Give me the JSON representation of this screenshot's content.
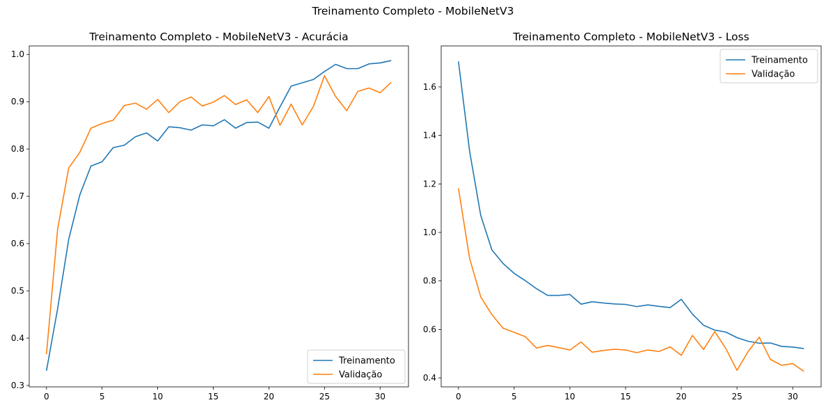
{
  "suptitle": "Treinamento Completo - MobileNetV3",
  "colors": {
    "train": "#1f77b4",
    "val": "#ff7f0e"
  },
  "chart_data": [
    {
      "type": "line",
      "title": "Treinamento Completo - MobileNetV3 - Acurácia",
      "xlabel": "",
      "ylabel": "",
      "xlim": [
        -1.55,
        32.55
      ],
      "ylim": [
        0.297,
        1.018
      ],
      "xticks": [
        0,
        5,
        10,
        15,
        20,
        25,
        30
      ],
      "yticks": [
        0.3,
        0.4,
        0.5,
        0.6,
        0.7,
        0.8,
        0.9,
        1.0
      ],
      "ytick_labels": [
        "0.3",
        "0.4",
        "0.5",
        "0.6",
        "0.7",
        "0.8",
        "0.9",
        "1.0"
      ],
      "legend_position": "lower right",
      "x": [
        0,
        1,
        2,
        3,
        4,
        5,
        6,
        7,
        8,
        9,
        10,
        11,
        12,
        13,
        14,
        15,
        16,
        17,
        18,
        19,
        20,
        21,
        22,
        23,
        24,
        25,
        26,
        27,
        28,
        29,
        30,
        31
      ],
      "series": [
        {
          "name": "Treinamento",
          "color_key": "train",
          "values": [
            0.331,
            0.462,
            0.609,
            0.703,
            0.764,
            0.773,
            0.803,
            0.808,
            0.826,
            0.834,
            0.817,
            0.847,
            0.845,
            0.84,
            0.851,
            0.849,
            0.862,
            0.844,
            0.856,
            0.857,
            0.844,
            0.889,
            0.933,
            0.94,
            0.947,
            0.964,
            0.979,
            0.97,
            0.97,
            0.98,
            0.982,
            0.987
          ]
        },
        {
          "name": "Validação",
          "color_key": "val",
          "values": [
            0.366,
            0.63,
            0.76,
            0.793,
            0.844,
            0.854,
            0.861,
            0.892,
            0.897,
            0.884,
            0.905,
            0.877,
            0.9,
            0.91,
            0.891,
            0.899,
            0.913,
            0.894,
            0.904,
            0.877,
            0.911,
            0.85,
            0.895,
            0.851,
            0.89,
            0.955,
            0.911,
            0.881,
            0.922,
            0.929,
            0.919,
            0.941
          ]
        }
      ]
    },
    {
      "type": "line",
      "title": "Treinamento Completo - MobileNetV3 - Loss",
      "xlabel": "",
      "ylabel": "",
      "xlim": [
        -1.55,
        32.55
      ],
      "ylim": [
        0.363,
        1.769
      ],
      "xticks": [
        0,
        5,
        10,
        15,
        20,
        25,
        30
      ],
      "yticks": [
        0.4,
        0.6,
        0.8,
        1.0,
        1.2,
        1.4,
        1.6
      ],
      "ytick_labels": [
        "0.4",
        "0.6",
        "0.8",
        "1.0",
        "1.2",
        "1.4",
        "1.6"
      ],
      "legend_position": "upper right",
      "x": [
        0,
        1,
        2,
        3,
        4,
        5,
        6,
        7,
        8,
        9,
        10,
        11,
        12,
        13,
        14,
        15,
        16,
        17,
        18,
        19,
        20,
        21,
        22,
        23,
        24,
        25,
        26,
        27,
        28,
        29,
        30,
        31
      ],
      "series": [
        {
          "name": "Treinamento",
          "color_key": "train",
          "values": [
            1.705,
            1.335,
            1.07,
            0.928,
            0.872,
            0.831,
            0.801,
            0.768,
            0.74,
            0.74,
            0.744,
            0.704,
            0.714,
            0.709,
            0.705,
            0.703,
            0.694,
            0.701,
            0.695,
            0.69,
            0.724,
            0.663,
            0.617,
            0.597,
            0.589,
            0.566,
            0.551,
            0.543,
            0.544,
            0.53,
            0.527,
            0.521
          ]
        },
        {
          "name": "Validação",
          "color_key": "val",
          "values": [
            1.182,
            0.893,
            0.734,
            0.661,
            0.605,
            0.588,
            0.57,
            0.523,
            0.534,
            0.525,
            0.515,
            0.548,
            0.506,
            0.513,
            0.518,
            0.515,
            0.504,
            0.515,
            0.509,
            0.528,
            0.493,
            0.575,
            0.517,
            0.591,
            0.521,
            0.431,
            0.509,
            0.568,
            0.476,
            0.452,
            0.459,
            0.427
          ]
        }
      ]
    }
  ]
}
